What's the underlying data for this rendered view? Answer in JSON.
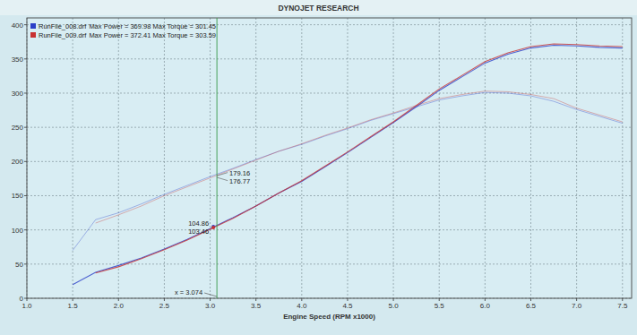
{
  "chart_data": {
    "type": "line",
    "title": "DYNOJET RESEARCH",
    "x_label": "Engine Speed (RPM x1000)",
    "x": [
      1.5,
      1.75,
      2.0,
      2.25,
      2.5,
      2.75,
      3.0,
      3.25,
      3.5,
      3.75,
      4.0,
      4.25,
      4.5,
      4.75,
      5.0,
      5.25,
      5.5,
      5.75,
      6.0,
      6.25,
      6.5,
      6.75,
      7.0,
      7.25,
      7.5
    ],
    "series": [
      {
        "name": "RunFile_008.drf",
        "color": "#2b3fc8",
        "line_style": "solid",
        "values": [
          20,
          38,
          48,
          59,
          72,
          86,
          102,
          118,
          135,
          154,
          171,
          192,
          213,
          235,
          257,
          280,
          304,
          324,
          344,
          357,
          366,
          370,
          369,
          367,
          366
        ]
      },
      {
        "name": "RunFile_009.drf",
        "color": "#c83232",
        "line_style": "solid",
        "values": [
          null,
          37,
          46,
          58,
          71,
          85,
          101,
          117,
          135,
          154,
          172,
          193,
          214,
          236,
          258,
          282,
          306,
          326,
          346,
          359,
          368,
          372,
          371,
          369,
          368
        ]
      },
      {
        "name": "RunFile_008.drf",
        "color": "#2b3fc8",
        "line_style": "faint",
        "values": [
          70,
          115,
          125,
          138,
          152,
          165,
          178,
          190,
          203,
          215,
          225,
          237,
          248,
          260,
          270,
          280,
          290,
          296,
          301,
          300,
          296,
          288,
          276,
          266,
          256
        ]
      },
      {
        "name": "RunFile_009.drf",
        "color": "#c83232",
        "line_style": "faint",
        "values": [
          null,
          110,
          122,
          135,
          150,
          163,
          176,
          189,
          202,
          215,
          226,
          238,
          249,
          261,
          271,
          282,
          292,
          298,
          303,
          302,
          298,
          292,
          278,
          268,
          258
        ]
      }
    ],
    "legend_details": [
      "Max Power = 369.98 Max Torque = 301.45",
      "Max Power = 372.41 Max Torque = 303.59"
    ],
    "cursor": {
      "x": 3.074,
      "label": "x = 3.074",
      "values": [
        104.86,
        103.46,
        179.16,
        176.77
      ]
    },
    "xlim": [
      1.0,
      7.6
    ],
    "xticks": [
      {
        "value": 1.0,
        "label": "1.0"
      },
      {
        "value": 1.5,
        "label": "1.5"
      },
      {
        "value": 2.0,
        "label": "2.0"
      },
      {
        "value": 2.5,
        "label": "2.5"
      },
      {
        "value": 3.0,
        "label": "3.0"
      },
      {
        "value": 3.5,
        "label": "3.5"
      },
      {
        "value": 4.0,
        "label": "4.0"
      },
      {
        "value": 4.5,
        "label": "4.5"
      },
      {
        "value": 5.0,
        "label": "5.0"
      },
      {
        "value": 5.5,
        "label": "5.5"
      },
      {
        "value": 6.0,
        "label": "6.0"
      },
      {
        "value": 6.5,
        "label": "6.5"
      },
      {
        "value": 7.0,
        "label": "7.0"
      },
      {
        "value": 7.5,
        "label": "7.5"
      }
    ],
    "ylim": [
      0,
      410
    ],
    "yticks": [
      0,
      50,
      100,
      150,
      200,
      250,
      300,
      350,
      400
    ],
    "grid": true,
    "legend": "top-left"
  }
}
